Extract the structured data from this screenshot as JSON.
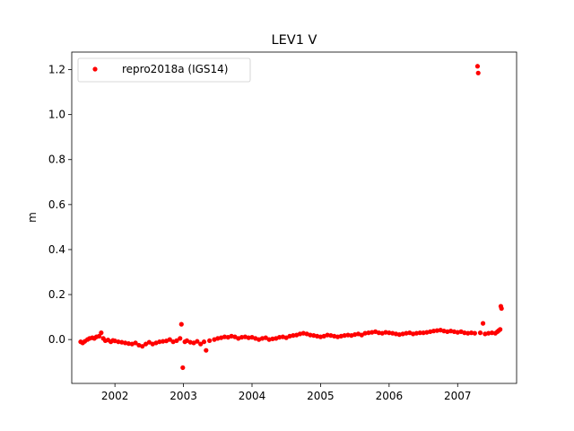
{
  "chart_data": {
    "type": "scatter",
    "title": "LEV1 V",
    "xlabel": "",
    "ylabel": "m",
    "xlim": [
      2001.37,
      2007.86
    ],
    "ylim": [
      -0.195,
      1.278
    ],
    "x_ticks": [
      2002,
      2003,
      2004,
      2005,
      2006,
      2007
    ],
    "x_tick_labels": [
      "2002",
      "2003",
      "2004",
      "2005",
      "2006",
      "2007"
    ],
    "y_ticks": [
      0.0,
      0.2,
      0.4,
      0.6,
      0.8,
      1.0,
      1.2
    ],
    "y_tick_labels": [
      "0.0",
      "0.2",
      "0.4",
      "0.6",
      "0.8",
      "1.0",
      "1.2"
    ],
    "grid": false,
    "legend_position": "top-left",
    "series": [
      {
        "name": "repro2018a (IGS14)",
        "color": "#ff0000",
        "marker": "circle",
        "points": [
          [
            2001.5,
            -0.01
          ],
          [
            2001.53,
            -0.015
          ],
          [
            2001.56,
            -0.008
          ],
          [
            2001.6,
            0.0
          ],
          [
            2001.63,
            0.005
          ],
          [
            2001.67,
            0.008
          ],
          [
            2001.7,
            0.005
          ],
          [
            2001.73,
            0.012
          ],
          [
            2001.77,
            0.015
          ],
          [
            2001.8,
            0.03
          ],
          [
            2001.83,
            0.005
          ],
          [
            2001.86,
            -0.005
          ],
          [
            2001.9,
            -0.002
          ],
          [
            2001.94,
            -0.01
          ],
          [
            2001.97,
            -0.004
          ],
          [
            2002.0,
            -0.006
          ],
          [
            2002.05,
            -0.01
          ],
          [
            2002.1,
            -0.012
          ],
          [
            2002.15,
            -0.015
          ],
          [
            2002.2,
            -0.018
          ],
          [
            2002.25,
            -0.02
          ],
          [
            2002.3,
            -0.015
          ],
          [
            2002.35,
            -0.025
          ],
          [
            2002.4,
            -0.03
          ],
          [
            2002.45,
            -0.02
          ],
          [
            2002.5,
            -0.012
          ],
          [
            2002.55,
            -0.02
          ],
          [
            2002.6,
            -0.015
          ],
          [
            2002.65,
            -0.01
          ],
          [
            2002.7,
            -0.008
          ],
          [
            2002.75,
            -0.006
          ],
          [
            2002.8,
            0.0
          ],
          [
            2002.85,
            -0.01
          ],
          [
            2002.9,
            -0.005
          ],
          [
            2002.95,
            0.005
          ],
          [
            2002.97,
            0.068
          ],
          [
            2002.99,
            -0.125
          ],
          [
            2003.02,
            -0.01
          ],
          [
            2003.05,
            -0.005
          ],
          [
            2003.1,
            -0.012
          ],
          [
            2003.15,
            -0.015
          ],
          [
            2003.2,
            -0.008
          ],
          [
            2003.25,
            -0.02
          ],
          [
            2003.3,
            -0.01
          ],
          [
            2003.33,
            -0.048
          ],
          [
            2003.38,
            -0.005
          ],
          [
            2003.45,
            0.0
          ],
          [
            2003.5,
            0.005
          ],
          [
            2003.55,
            0.008
          ],
          [
            2003.6,
            0.012
          ],
          [
            2003.65,
            0.01
          ],
          [
            2003.7,
            0.015
          ],
          [
            2003.75,
            0.012
          ],
          [
            2003.8,
            0.005
          ],
          [
            2003.85,
            0.01
          ],
          [
            2003.9,
            0.012
          ],
          [
            2003.95,
            0.008
          ],
          [
            2004.0,
            0.01
          ],
          [
            2004.05,
            0.005
          ],
          [
            2004.1,
            0.0
          ],
          [
            2004.15,
            0.005
          ],
          [
            2004.2,
            0.008
          ],
          [
            2004.25,
            0.0
          ],
          [
            2004.3,
            0.003
          ],
          [
            2004.35,
            0.005
          ],
          [
            2004.4,
            0.01
          ],
          [
            2004.45,
            0.012
          ],
          [
            2004.5,
            0.008
          ],
          [
            2004.55,
            0.015
          ],
          [
            2004.6,
            0.018
          ],
          [
            2004.65,
            0.02
          ],
          [
            2004.7,
            0.025
          ],
          [
            2004.75,
            0.028
          ],
          [
            2004.8,
            0.025
          ],
          [
            2004.85,
            0.02
          ],
          [
            2004.9,
            0.018
          ],
          [
            2004.95,
            0.015
          ],
          [
            2005.0,
            0.012
          ],
          [
            2005.05,
            0.015
          ],
          [
            2005.1,
            0.02
          ],
          [
            2005.15,
            0.018
          ],
          [
            2005.2,
            0.015
          ],
          [
            2005.25,
            0.012
          ],
          [
            2005.3,
            0.015
          ],
          [
            2005.35,
            0.018
          ],
          [
            2005.4,
            0.02
          ],
          [
            2005.45,
            0.018
          ],
          [
            2005.5,
            0.022
          ],
          [
            2005.55,
            0.025
          ],
          [
            2005.6,
            0.02
          ],
          [
            2005.65,
            0.028
          ],
          [
            2005.7,
            0.03
          ],
          [
            2005.75,
            0.032
          ],
          [
            2005.8,
            0.035
          ],
          [
            2005.85,
            0.03
          ],
          [
            2005.9,
            0.028
          ],
          [
            2005.95,
            0.032
          ],
          [
            2006.0,
            0.03
          ],
          [
            2006.05,
            0.028
          ],
          [
            2006.1,
            0.025
          ],
          [
            2006.15,
            0.022
          ],
          [
            2006.2,
            0.025
          ],
          [
            2006.25,
            0.028
          ],
          [
            2006.3,
            0.03
          ],
          [
            2006.35,
            0.025
          ],
          [
            2006.4,
            0.028
          ],
          [
            2006.45,
            0.03
          ],
          [
            2006.5,
            0.03
          ],
          [
            2006.55,
            0.032
          ],
          [
            2006.6,
            0.035
          ],
          [
            2006.65,
            0.038
          ],
          [
            2006.7,
            0.04
          ],
          [
            2006.75,
            0.042
          ],
          [
            2006.8,
            0.038
          ],
          [
            2006.85,
            0.035
          ],
          [
            2006.9,
            0.038
          ],
          [
            2006.95,
            0.035
          ],
          [
            2007.0,
            0.032
          ],
          [
            2007.05,
            0.035
          ],
          [
            2007.1,
            0.03
          ],
          [
            2007.15,
            0.028
          ],
          [
            2007.2,
            0.03
          ],
          [
            2007.25,
            0.028
          ],
          [
            2007.29,
            1.215
          ],
          [
            2007.3,
            1.185
          ],
          [
            2007.33,
            0.03
          ],
          [
            2007.37,
            0.072
          ],
          [
            2007.4,
            0.025
          ],
          [
            2007.45,
            0.028
          ],
          [
            2007.5,
            0.03
          ],
          [
            2007.55,
            0.028
          ],
          [
            2007.58,
            0.035
          ],
          [
            2007.6,
            0.04
          ],
          [
            2007.62,
            0.045
          ],
          [
            2007.63,
            0.148
          ],
          [
            2007.64,
            0.138
          ]
        ]
      }
    ]
  }
}
